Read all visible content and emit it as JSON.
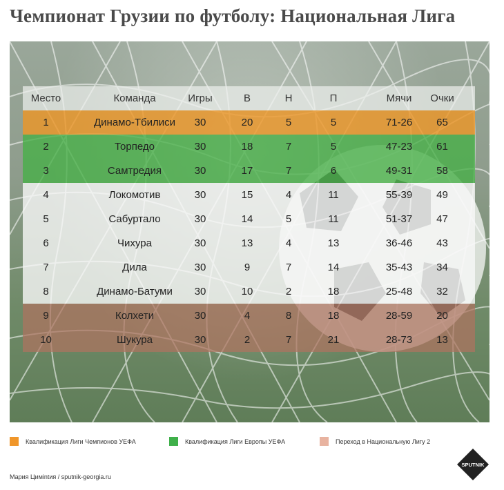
{
  "title": "Чемпионат Грузии по футболу: Национальная Лига",
  "colors": {
    "ucl": "#f0962a",
    "uel": "#3fb04a",
    "relegation": "#e8b3a0",
    "title_text": "#4a4a4a"
  },
  "table": {
    "headers": {
      "pos": "Место",
      "team": "Команда",
      "games": "Игры",
      "w": "В",
      "d": "Н",
      "l": "П",
      "goals": "Мячи",
      "pts": "Очки"
    },
    "rows": [
      {
        "pos": "1",
        "team": "Динамо-Тбилиси",
        "games": "30",
        "w": "20",
        "d": "5",
        "l": "5",
        "goals": "71-26",
        "pts": "65",
        "zone": "ucl"
      },
      {
        "pos": "2",
        "team": "Торпедо",
        "games": "30",
        "w": "18",
        "d": "7",
        "l": "5",
        "goals": "47-23",
        "pts": "61",
        "zone": "uel"
      },
      {
        "pos": "3",
        "team": "Самтредия",
        "games": "30",
        "w": "17",
        "d": "7",
        "l": "6",
        "goals": "49-31",
        "pts": "58",
        "zone": "uel"
      },
      {
        "pos": "4",
        "team": "Локомотив",
        "games": "30",
        "w": "15",
        "d": "4",
        "l": "11",
        "goals": "55-39",
        "pts": "49",
        "zone": "norm"
      },
      {
        "pos": "5",
        "team": "Сабуртало",
        "games": "30",
        "w": "14",
        "d": "5",
        "l": "11",
        "goals": "51-37",
        "pts": "47",
        "zone": "norm"
      },
      {
        "pos": "6",
        "team": "Чихура",
        "games": "30",
        "w": "13",
        "d": "4",
        "l": "13",
        "goals": "36-46",
        "pts": "43",
        "zone": "norm"
      },
      {
        "pos": "7",
        "team": "Дила",
        "games": "30",
        "w": "9",
        "d": "7",
        "l": "14",
        "goals": "35-43",
        "pts": "34",
        "zone": "norm"
      },
      {
        "pos": "8",
        "team": "Динамо-Батуми",
        "games": "30",
        "w": "10",
        "d": "2",
        "l": "18",
        "goals": "25-48",
        "pts": "32",
        "zone": "norm"
      },
      {
        "pos": "9",
        "team": "Колхети",
        "games": "30",
        "w": "4",
        "d": "8",
        "l": "18",
        "goals": "28-59",
        "pts": "20",
        "zone": "rel"
      },
      {
        "pos": "10",
        "team": "Шукура",
        "games": "30",
        "w": "2",
        "d": "7",
        "l": "21",
        "goals": "28-73",
        "pts": "13",
        "zone": "rel"
      }
    ]
  },
  "legend": {
    "ucl": "Квалификация Лиги Чемпионов УЕФА",
    "uel": "Квалификация Лиги Европы УЕФА",
    "relegation": "Переход в Национальную Лигу 2"
  },
  "credit": "Мария Цимintия / sputnik-georgia.ru",
  "logo_text": "SPUTNIK",
  "icons": [
    "soccer-ball-icon",
    "goal-net-icon",
    "sputnik-logo-icon"
  ]
}
